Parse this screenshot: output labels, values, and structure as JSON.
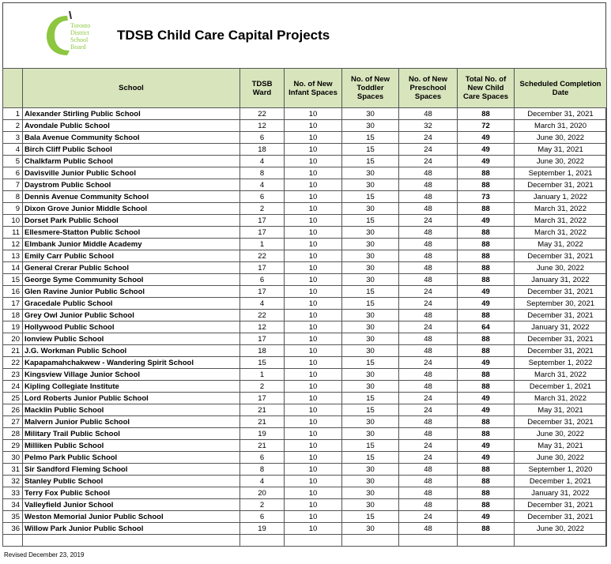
{
  "header": {
    "logo": [
      "Toronto",
      "District",
      "School",
      "Board"
    ],
    "title": "TDSB Child Care Capital Projects"
  },
  "table": {
    "columns": [
      "School",
      "TDSB Ward",
      "No. of New Infant Spaces",
      "No. of New Toddler Spaces",
      "No. of New Preschool Spaces",
      "Total No. of New Child Care Spaces",
      "Scheduled Completion Date"
    ],
    "rows": [
      [
        1,
        "Alexander Stirling Public School",
        22,
        10,
        30,
        48,
        88,
        "December 31, 2021"
      ],
      [
        2,
        "Avondale Public School",
        12,
        10,
        30,
        32,
        72,
        "March 31, 2020"
      ],
      [
        3,
        "Bala Avenue Community School",
        6,
        10,
        15,
        24,
        49,
        "June 30, 2022"
      ],
      [
        4,
        "Birch Cliff Public School",
        18,
        10,
        15,
        24,
        49,
        "May 31, 2021"
      ],
      [
        5,
        "Chalkfarm Public School",
        4,
        10,
        15,
        24,
        49,
        "June 30, 2022"
      ],
      [
        6,
        "Davisville Junior Public School",
        8,
        10,
        30,
        48,
        88,
        "September 1, 2021"
      ],
      [
        7,
        "Daystrom Public School",
        4,
        10,
        30,
        48,
        88,
        "December 31, 2021"
      ],
      [
        8,
        "Dennis Avenue Community School",
        6,
        10,
        15,
        48,
        73,
        "January 1, 2022"
      ],
      [
        9,
        "Dixon Grove Junior Middle School",
        2,
        10,
        30,
        48,
        88,
        "March 31, 2022"
      ],
      [
        10,
        "Dorset Park Public School",
        17,
        10,
        15,
        24,
        49,
        "March 31, 2022"
      ],
      [
        11,
        "Ellesmere-Statton Public School",
        17,
        10,
        30,
        48,
        88,
        "March 31, 2022"
      ],
      [
        12,
        "Elmbank Junior  Middle Academy",
        1,
        10,
        30,
        48,
        88,
        "May 31, 2022"
      ],
      [
        13,
        "Emily Carr Public School",
        22,
        10,
        30,
        48,
        88,
        "December 31, 2021"
      ],
      [
        14,
        "General Crerar Public School",
        17,
        10,
        30,
        48,
        88,
        "June 30, 2022"
      ],
      [
        15,
        "George Syme Community School",
        6,
        10,
        30,
        48,
        88,
        "January 31, 2022"
      ],
      [
        16,
        "Glen Ravine Junior Public School",
        17,
        10,
        15,
        24,
        49,
        "December 31, 2021"
      ],
      [
        17,
        "Gracedale Public School",
        4,
        10,
        15,
        24,
        49,
        "September 30, 2021"
      ],
      [
        18,
        "Grey Owl Junior Public School",
        22,
        10,
        30,
        48,
        88,
        "December 31, 2021"
      ],
      [
        19,
        "Hollywood Public School",
        12,
        10,
        30,
        24,
        64,
        "January 31, 2022"
      ],
      [
        20,
        "Ionview Public School",
        17,
        10,
        30,
        48,
        88,
        "December 31, 2021"
      ],
      [
        21,
        "J.G. Workman Public School",
        18,
        10,
        30,
        48,
        88,
        "December 31, 2021"
      ],
      [
        22,
        "Kapapamahchakwew - Wandering Spirit School",
        15,
        10,
        15,
        24,
        49,
        "September 1, 2022"
      ],
      [
        23,
        "Kingsview Village Junior School",
        1,
        10,
        30,
        48,
        88,
        "March 31, 2022"
      ],
      [
        24,
        "Kipling Collegiate Institute",
        2,
        10,
        30,
        48,
        88,
        "December 1, 2021"
      ],
      [
        25,
        "Lord Roberts Junior Public School",
        17,
        10,
        15,
        24,
        49,
        "March 31, 2022"
      ],
      [
        26,
        "Macklin Public School",
        21,
        10,
        15,
        24,
        49,
        "May 31, 2021"
      ],
      [
        27,
        "Malvern Junior Public School",
        21,
        10,
        30,
        48,
        88,
        "December 31, 2021"
      ],
      [
        28,
        "Military Trail Public School",
        19,
        10,
        30,
        48,
        88,
        "June 30, 2022"
      ],
      [
        29,
        "Milliken Public School",
        21,
        10,
        15,
        24,
        49,
        "May 31, 2021"
      ],
      [
        30,
        "Pelmo Park Public School",
        6,
        10,
        15,
        24,
        49,
        "June 30, 2022"
      ],
      [
        31,
        "Sir Sandford Fleming School",
        8,
        10,
        30,
        48,
        88,
        "September 1, 2020"
      ],
      [
        32,
        "Stanley Public School",
        4,
        10,
        30,
        48,
        88,
        "December 1, 2021"
      ],
      [
        33,
        "Terry Fox Public School",
        20,
        10,
        30,
        48,
        88,
        "January 31, 2022"
      ],
      [
        34,
        "Valleyfield Junior School",
        2,
        10,
        30,
        48,
        88,
        "December 31, 2021"
      ],
      [
        35,
        "Weston Memorial Junior Public School",
        6,
        10,
        15,
        24,
        49,
        "December 31, 2021"
      ],
      [
        36,
        "Willow Park Junior Public School",
        19,
        10,
        30,
        48,
        88,
        "June 30, 2022"
      ]
    ]
  },
  "footer": "Revised December 23, 2019"
}
